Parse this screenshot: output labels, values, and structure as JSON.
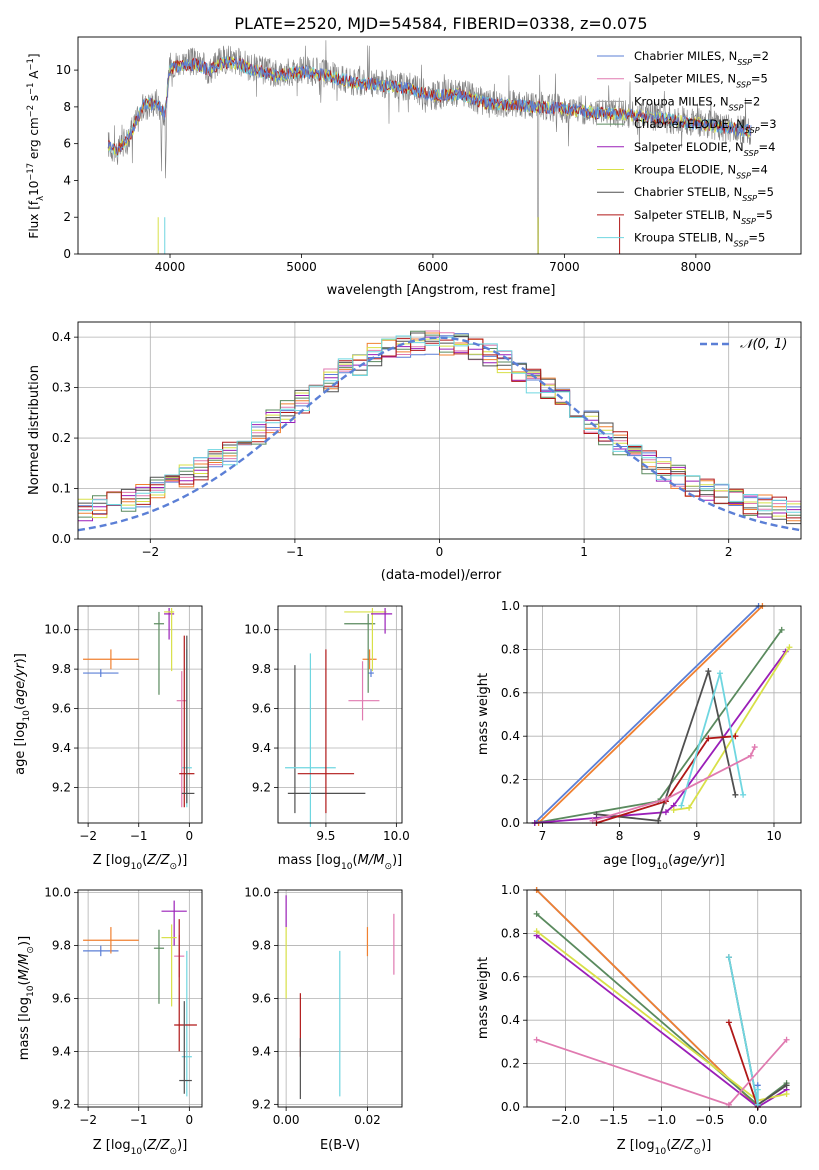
{
  "figure_title": "PLATE=2520, MJD=54584, FIBERID=0338, z=0.075",
  "colors": {
    "c1": "#5b7fd6",
    "c2": "#f08030",
    "c3": "#5a8a5e",
    "c4": "#9a1fb8",
    "c5": "#d8e048",
    "c6": "#505050",
    "c7": "#b01818",
    "c8": "#6fd6e0",
    "pink": "#e07ab0",
    "gray": "#808080",
    "grid": "#b0b0b0"
  },
  "legend1": [
    {
      "name": "Chabrier MILES, N",
      "sub": "SSP",
      "suffix": "=2",
      "color": "#5b7fd6"
    },
    {
      "name": "Salpeter MILES, N",
      "sub": "SSP",
      "suffix": "=5",
      "color": "#e07ab0"
    },
    {
      "name": "Kroupa MILES, N",
      "sub": "SSP",
      "suffix": "=2",
      "color": "#a0a0a0"
    },
    {
      "name": "Chabrier ELODIE, N",
      "sub": "SSP",
      "suffix": "=3",
      "color": "#5a8a5e"
    },
    {
      "name": "Salpeter ELODIE, N",
      "sub": "SSP",
      "suffix": "=4",
      "color": "#9a1fb8"
    },
    {
      "name": "Kroupa ELODIE, N",
      "sub": "SSP",
      "suffix": "=4",
      "color": "#d8e048"
    },
    {
      "name": "Chabrier STELIB, N",
      "sub": "SSP",
      "suffix": "=5",
      "color": "#505050"
    },
    {
      "name": "Salpeter STELIB, N",
      "sub": "SSP",
      "suffix": "=5",
      "color": "#b01818"
    },
    {
      "name": "Kroupa STELIB, N",
      "sub": "SSP",
      "suffix": "=5",
      "color": "#6fd6e0"
    }
  ],
  "legend2": {
    "label": "𝒩(0, 1)"
  },
  "chart_data": [
    {
      "type": "line",
      "id": "spectrum",
      "title": "PLATE=2520, MJD=54584, FIBERID=0338, z=0.075",
      "xlabel": "wavelength [Angstrom, rest frame]",
      "ylabel": "Flux [f_λ 10^-17 erg cm^-2 s^-1 A^-1]",
      "xlim": [
        3300,
        8800
      ],
      "ylim": [
        0,
        11.8
      ],
      "xticks": [
        4000,
        5000,
        6000,
        7000,
        8000
      ],
      "yticks": [
        0,
        2,
        4,
        6,
        8,
        10
      ],
      "series": [
        {
          "name": "data",
          "color": "#808080",
          "x": [
            3530,
            3600,
            3700,
            3800,
            3900,
            3960,
            4000,
            4100,
            4200,
            4300,
            4400,
            4500,
            4600,
            4800,
            5000,
            5200,
            5400,
            5600,
            5800,
            6000,
            6200,
            6400,
            6600,
            6800,
            7000,
            7200,
            7400,
            7600,
            7800,
            8000,
            8200,
            8400
          ],
          "y": [
            6.0,
            5.5,
            6.6,
            8.0,
            8.3,
            7.5,
            10.3,
            10.5,
            10.4,
            10.0,
            10.6,
            10.5,
            10.2,
            9.8,
            10.0,
            9.8,
            9.3,
            9.3,
            9.1,
            8.6,
            8.8,
            8.2,
            8.2,
            8.1,
            7.9,
            7.8,
            7.6,
            7.6,
            7.3,
            7.2,
            6.9,
            6.7
          ]
        },
        {
          "name": "model",
          "color": "#b01818",
          "x": [
            3530,
            3600,
            3700,
            3800,
            3900,
            3960,
            4000,
            4100,
            4200,
            4300,
            4400,
            4500,
            4600,
            4800,
            5000,
            5200,
            5400,
            5600,
            5800,
            6000,
            6200,
            6400,
            6600,
            6800,
            7000,
            7200,
            7400,
            7600,
            7800,
            8000,
            8200,
            8400
          ],
          "y": [
            5.9,
            5.6,
            6.5,
            8.1,
            8.2,
            7.6,
            10.1,
            10.3,
            10.3,
            10.0,
            10.4,
            10.4,
            10.1,
            9.7,
            9.9,
            9.7,
            9.3,
            9.2,
            9.0,
            8.6,
            8.7,
            8.2,
            8.1,
            8.0,
            7.9,
            7.7,
            7.6,
            7.5,
            7.3,
            7.1,
            6.9,
            6.7
          ]
        }
      ]
    },
    {
      "type": "line",
      "id": "residuals",
      "xlabel": "(data-model)/error",
      "ylabel": "Normed distribution",
      "xlim": [
        -2.5,
        2.5
      ],
      "ylim": [
        0,
        0.43
      ],
      "xticks": [
        -2,
        -1,
        0,
        1,
        2
      ],
      "yticks": [
        0.0,
        0.1,
        0.2,
        0.3,
        0.4
      ],
      "series": [
        {
          "name": "𝒩(0, 1)",
          "color": "#5b7fd6",
          "style": "dashed"
        }
      ]
    },
    {
      "type": "scatter",
      "id": "z-age",
      "xlabel": "Z [log10(Z/Z⊙)]",
      "ylabel": "age [log10(age/yr)]",
      "xlim": [
        -2.2,
        0.25
      ],
      "ylim": [
        9.02,
        10.12
      ],
      "xticks": [
        -2,
        -1,
        0
      ],
      "yticks": [
        9.2,
        9.4,
        9.6,
        9.8,
        10.0
      ],
      "points": [
        {
          "color": "#5b7fd6",
          "x": -1.75,
          "y": 9.78,
          "xerr": [
            0.35,
            0.35
          ],
          "yerr": [
            0.02,
            0.02
          ]
        },
        {
          "color": "#f08030",
          "x": -1.55,
          "y": 9.85,
          "xerr": [
            0.55,
            0.55
          ],
          "yerr": [
            0.05,
            0.05
          ]
        },
        {
          "color": "#5a8a5e",
          "x": -0.6,
          "y": 10.03,
          "xerr": [
            0.1,
            0.1
          ],
          "yerr": [
            0.36,
            0.06
          ]
        },
        {
          "color": "#9a1fb8",
          "x": -0.4,
          "y": 10.08,
          "xerr": [
            0.1,
            0.1
          ],
          "yerr": [
            0.13,
            0.03
          ]
        },
        {
          "color": "#d8e048",
          "x": -0.35,
          "y": 10.09,
          "xerr": [
            0.15,
            0.05
          ],
          "yerr": [
            0.3,
            0.02
          ]
        },
        {
          "color": "#e07ab0",
          "x": -0.15,
          "y": 9.64,
          "xerr": [
            0.1,
            0.1
          ],
          "yerr": [
            0.54,
            0.15
          ]
        },
        {
          "color": "#6fd6e0",
          "x": -0.05,
          "y": 9.3,
          "xerr": [
            0.1,
            0.1
          ],
          "yerr": [
            0.2,
            0.6
          ]
        },
        {
          "color": "#b01818",
          "x": -0.1,
          "y": 9.27,
          "xerr": [
            0.1,
            0.2
          ],
          "yerr": [
            0.17,
            0.7
          ]
        },
        {
          "color": "#505050",
          "x": -0.05,
          "y": 9.17,
          "xerr": [
            0.1,
            0.15
          ],
          "yerr": [
            0.05,
            0.8
          ]
        }
      ]
    },
    {
      "type": "scatter",
      "id": "mass-age",
      "xlabel": "mass [log10(M/M⊙)]",
      "ylabel": "",
      "xlim": [
        9.16,
        10.04
      ],
      "ylim": [
        9.02,
        10.12
      ],
      "xticks": [
        9.5,
        10.0
      ],
      "yticks": [
        9.2,
        9.4,
        9.6,
        9.8,
        10.0
      ],
      "points": [
        {
          "color": "#505050",
          "x": 9.28,
          "y": 9.17,
          "xerr": [
            0.05,
            0.5
          ],
          "yerr": [
            0.1,
            0.65
          ]
        },
        {
          "color": "#6fd6e0",
          "x": 9.39,
          "y": 9.3,
          "xerr": [
            0.18,
            0.18
          ],
          "yerr": [
            0.3,
            0.58
          ]
        },
        {
          "color": "#b01818",
          "x": 9.5,
          "y": 9.27,
          "xerr": [
            0.2,
            0.2
          ],
          "yerr": [
            0.2,
            0.63
          ]
        },
        {
          "color": "#e07ab0",
          "x": 9.76,
          "y": 9.64,
          "xerr": [
            0.1,
            0.12
          ],
          "yerr": [
            0.1,
            0.2
          ]
        },
        {
          "color": "#5b7fd6",
          "x": 9.82,
          "y": 9.78,
          "xerr": [
            0.02,
            0.02
          ],
          "yerr": [
            0.02,
            0.02
          ]
        },
        {
          "color": "#f08030",
          "x": 9.81,
          "y": 9.85,
          "xerr": [
            0.05,
            0.05
          ],
          "yerr": [
            0.05,
            0.05
          ]
        },
        {
          "color": "#5a8a5e",
          "x": 9.8,
          "y": 10.03,
          "xerr": [
            0.17,
            0.05
          ],
          "yerr": [
            0.35,
            0.05
          ]
        },
        {
          "color": "#d8e048",
          "x": 9.83,
          "y": 10.09,
          "xerr": [
            0.2,
            0.1
          ],
          "yerr": [
            0.3,
            0.02
          ]
        },
        {
          "color": "#9a1fb8",
          "x": 9.92,
          "y": 10.08,
          "xerr": [
            0.1,
            0.05
          ],
          "yerr": [
            0.1,
            0.03
          ]
        }
      ]
    },
    {
      "type": "line",
      "id": "age-weight",
      "xlabel": "age [log10(age/yr)]",
      "ylabel": "mass weight",
      "xlim": [
        6.8,
        10.35
      ],
      "ylim": [
        0,
        1.0
      ],
      "xticks": [
        7,
        8,
        9,
        10
      ],
      "yticks": [
        0.0,
        0.2,
        0.4,
        0.6,
        0.8,
        1.0
      ],
      "series": [
        {
          "color": "#5b7fd6",
          "x": [
            6.9,
            9.8
          ],
          "y": [
            0.0,
            1.0
          ]
        },
        {
          "color": "#f08030",
          "x": [
            6.95,
            9.85
          ],
          "y": [
            0.0,
            1.0
          ]
        },
        {
          "color": "#5a8a5e",
          "x": [
            6.9,
            8.5,
            10.1
          ],
          "y": [
            0.0,
            0.1,
            0.89
          ]
        },
        {
          "color": "#9a1fb8",
          "x": [
            6.9,
            8.6,
            8.7,
            10.15
          ],
          "y": [
            0.0,
            0.05,
            0.08,
            0.79
          ]
        },
        {
          "color": "#d8e048",
          "x": [
            8.7,
            8.9,
            10.2
          ],
          "y": [
            0.06,
            0.07,
            0.81
          ]
        },
        {
          "color": "#505050",
          "x": [
            7.7,
            8.5,
            9.15,
            9.5
          ],
          "y": [
            0.04,
            0.01,
            0.7,
            0.13
          ]
        },
        {
          "color": "#b01818",
          "x": [
            7.7,
            8.6,
            9.15,
            9.5
          ],
          "y": [
            0.0,
            0.1,
            0.39,
            0.4
          ]
        },
        {
          "color": "#6fd6e0",
          "x": [
            8.8,
            9.3,
            9.6
          ],
          "y": [
            0.08,
            0.69,
            0.13
          ]
        },
        {
          "color": "#e07ab0",
          "x": [
            7.65,
            8.6,
            9.7,
            9.75
          ],
          "y": [
            0.01,
            0.11,
            0.31,
            0.35
          ]
        }
      ]
    },
    {
      "type": "scatter",
      "id": "z-mass",
      "xlabel": "Z [log10(Z/Z⊙)]",
      "ylabel": "mass [log10(M/M⊙)]",
      "xlim": [
        -2.2,
        0.25
      ],
      "ylim": [
        9.19,
        10.01
      ],
      "xticks": [
        -2,
        -1,
        0
      ],
      "yticks": [
        9.2,
        9.4,
        9.6,
        9.8,
        10.0
      ],
      "points": [
        {
          "color": "#5b7fd6",
          "x": -1.75,
          "y": 9.78,
          "xerr": [
            0.35,
            0.35
          ],
          "yerr": [
            0.02,
            0.02
          ]
        },
        {
          "color": "#f08030",
          "x": -1.55,
          "y": 9.82,
          "xerr": [
            0.55,
            0.55
          ],
          "yerr": [
            0.05,
            0.05
          ]
        },
        {
          "color": "#5a8a5e",
          "x": -0.6,
          "y": 9.79,
          "xerr": [
            0.1,
            0.1
          ],
          "yerr": [
            0.21,
            0.07
          ]
        },
        {
          "color": "#9a1fb8",
          "x": -0.3,
          "y": 9.93,
          "xerr": [
            0.25,
            0.25
          ],
          "yerr": [
            0.13,
            0.04
          ]
        },
        {
          "color": "#d8e048",
          "x": -0.35,
          "y": 9.83,
          "xerr": [
            0.2,
            0.1
          ],
          "yerr": [
            0.26,
            0.05
          ]
        },
        {
          "color": "#e07ab0",
          "x": -0.2,
          "y": 9.76,
          "xerr": [
            0.1,
            0.1
          ],
          "yerr": [
            0.08,
            0.08
          ]
        },
        {
          "color": "#6fd6e0",
          "x": -0.05,
          "y": 9.38,
          "xerr": [
            0.1,
            0.1
          ],
          "yerr": [
            0.15,
            0.4
          ]
        },
        {
          "color": "#b01818",
          "x": -0.2,
          "y": 9.5,
          "xerr": [
            0.1,
            0.35
          ],
          "yerr": [
            0.1,
            0.4
          ]
        },
        {
          "color": "#505050",
          "x": -0.1,
          "y": 9.29,
          "xerr": [
            0.1,
            0.15
          ],
          "yerr": [
            0.05,
            0.3
          ]
        }
      ]
    },
    {
      "type": "scatter",
      "id": "ebv-mass",
      "xlabel": "E(B-V)",
      "ylabel": "",
      "xlim": [
        -0.002,
        0.0285
      ],
      "ylim": [
        9.19,
        10.01
      ],
      "xticks": [
        0.0,
        0.02
      ],
      "yticks": [
        9.2,
        9.4,
        9.6,
        9.8,
        10.0
      ],
      "points": [
        {
          "color": "#9a1fb8",
          "x": 0.0,
          "y": 9.93,
          "xerr": [
            0,
            0
          ],
          "yerr": [
            0.06,
            0.06
          ]
        },
        {
          "color": "#d8e048",
          "x": 0.0,
          "y": 9.75,
          "xerr": [
            0,
            0
          ],
          "yerr": [
            0.15,
            0.12
          ]
        },
        {
          "color": "#b01818",
          "x": 0.0035,
          "y": 9.5,
          "xerr": [
            0,
            0
          ],
          "yerr": [
            0.12,
            0.12
          ]
        },
        {
          "color": "#505050",
          "x": 0.0035,
          "y": 9.35,
          "xerr": [
            0,
            0
          ],
          "yerr": [
            0.13,
            0.1
          ]
        },
        {
          "color": "#6fd6e0",
          "x": 0.0132,
          "y": 9.5,
          "xerr": [
            0,
            0
          ],
          "yerr": [
            0.27,
            0.28
          ]
        },
        {
          "color": "#f08030",
          "x": 0.02,
          "y": 9.81,
          "xerr": [
            0,
            0
          ],
          "yerr": [
            0.05,
            0.06
          ]
        },
        {
          "color": "#e07ab0",
          "x": 0.0265,
          "y": 9.81,
          "xerr": [
            0,
            0
          ],
          "yerr": [
            0.12,
            0.11
          ]
        }
      ]
    },
    {
      "type": "line",
      "id": "z-weight",
      "xlabel": "Z [log10(Z/Z⊙)]",
      "ylabel": "mass weight",
      "xlim": [
        -2.4,
        0.45
      ],
      "ylim": [
        0,
        1.0
      ],
      "xticks": [
        -2.0,
        -1.5,
        -1.0,
        -0.5,
        0.0
      ],
      "yticks": [
        0.0,
        0.2,
        0.4,
        0.6,
        0.8,
        1.0
      ],
      "series": [
        {
          "color": "#5b7fd6",
          "x": [
            -2.3,
            0.0,
            0.0
          ],
          "y": [
            1.0,
            0.0,
            0.1
          ]
        },
        {
          "color": "#f08030",
          "x": [
            -2.3,
            0.0
          ],
          "y": [
            1.0,
            0.0
          ]
        },
        {
          "color": "#5a8a5e",
          "x": [
            -2.3,
            0.0,
            0.3
          ],
          "y": [
            0.89,
            0.01,
            0.11
          ]
        },
        {
          "color": "#9a1fb8",
          "x": [
            -2.3,
            0.0,
            0.3
          ],
          "y": [
            0.79,
            0.0,
            0.08
          ]
        },
        {
          "color": "#d8e048",
          "x": [
            -2.3,
            0.0,
            0.3
          ],
          "y": [
            0.81,
            0.03,
            0.06
          ]
        },
        {
          "color": "#505050",
          "x": [
            -0.3,
            0.0,
            0.3
          ],
          "y": [
            0.69,
            0.01,
            0.1
          ]
        },
        {
          "color": "#b01818",
          "x": [
            -0.3,
            0.0
          ],
          "y": [
            0.39,
            0.0
          ]
        },
        {
          "color": "#6fd6e0",
          "x": [
            -0.3,
            0.0,
            0.0
          ],
          "y": [
            0.69,
            0.01,
            0.08
          ]
        },
        {
          "color": "#e07ab0",
          "x": [
            -2.3,
            -0.3,
            0.3
          ],
          "y": [
            0.31,
            0.01,
            0.31
          ]
        }
      ]
    }
  ]
}
